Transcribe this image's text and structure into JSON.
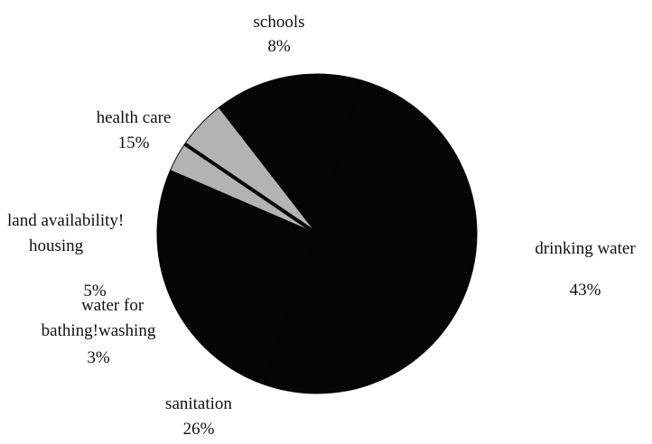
{
  "chart_data": {
    "type": "pie",
    "title": "",
    "colors": {
      "main": "#050505",
      "light": "#b3b3b3",
      "edge": "#ffffff"
    },
    "slices": [
      {
        "label": "drinking water",
        "value": 43,
        "display": "43%",
        "color": "#050505"
      },
      {
        "label": "sanitation",
        "value": 26,
        "display": "26%",
        "color": "#050505"
      },
      {
        "label": "water for\nbathing!washing",
        "value": 3,
        "display": "3%",
        "color": "#b3b3b3"
      },
      {
        "label": "land availability!\nhousing",
        "value": 5,
        "display": "5%",
        "color": "#b3b3b3"
      },
      {
        "label": "health care",
        "value": 15,
        "display": "15%",
        "color": "#050505"
      },
      {
        "label": "schools",
        "value": 8,
        "display": "8%",
        "color": "#050505"
      }
    ]
  }
}
